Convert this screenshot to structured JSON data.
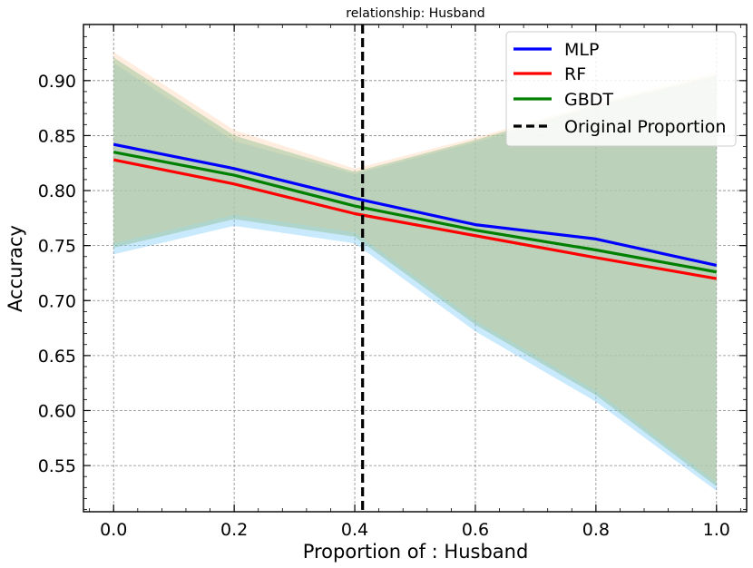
{
  "chart_data": {
    "type": "line",
    "title": "relationship: Husband",
    "xlabel": "Proportion of : Husband",
    "ylabel": "Accuracy",
    "xlim": [
      -0.05,
      1.05
    ],
    "ylim": [
      0.508,
      0.951
    ],
    "xticks": [
      0.0,
      0.2,
      0.4,
      0.6,
      0.8,
      1.0
    ],
    "xtick_labels": [
      "0.0",
      "0.2",
      "0.4",
      "0.6",
      "0.8",
      "1.0"
    ],
    "yticks": [
      0.55,
      0.6,
      0.65,
      0.7,
      0.75,
      0.8,
      0.85,
      0.9
    ],
    "ytick_labels": [
      "0.55",
      "0.60",
      "0.65",
      "0.70",
      "0.75",
      "0.80",
      "0.85",
      "0.90"
    ],
    "grid": true,
    "legend_position": "top-right",
    "x": [
      0.0,
      0.2,
      0.4,
      0.6,
      0.8,
      1.0
    ],
    "series": [
      {
        "name": "MLP",
        "color": "#0000ff",
        "values": [
          0.842,
          0.82,
          0.793,
          0.769,
          0.756,
          0.732
        ],
        "band_lower": [
          0.742,
          0.768,
          0.752,
          0.672,
          0.608,
          0.527
        ],
        "band_upper": [
          0.916,
          0.845,
          0.815,
          0.844,
          0.876,
          0.903
        ],
        "band_color": "#87cefa"
      },
      {
        "name": "RF",
        "color": "#ff0000",
        "values": [
          0.828,
          0.806,
          0.779,
          0.759,
          0.739,
          0.72
        ],
        "band_lower": [
          0.752,
          0.778,
          0.762,
          0.682,
          0.618,
          0.535
        ],
        "band_upper": [
          0.926,
          0.855,
          0.82,
          0.848,
          0.88,
          0.908
        ],
        "band_color": "#ffdab9"
      },
      {
        "name": "GBDT",
        "color": "#008000",
        "values": [
          0.835,
          0.814,
          0.786,
          0.764,
          0.746,
          0.726
        ],
        "band_lower": [
          0.748,
          0.774,
          0.758,
          0.678,
          0.614,
          0.531
        ],
        "band_upper": [
          0.921,
          0.85,
          0.817,
          0.846,
          0.878,
          0.905
        ],
        "band_color": "#8fbc8f"
      }
    ],
    "reference_line": {
      "name": "Original Proportion",
      "x": 0.413,
      "color": "#000000"
    }
  }
}
